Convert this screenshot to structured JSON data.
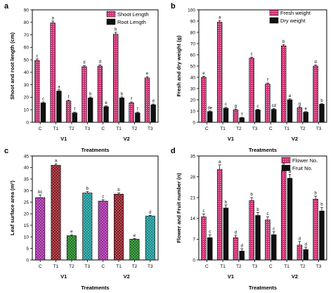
{
  "figure": {
    "panels": [
      "a",
      "b",
      "c",
      "d"
    ]
  },
  "chart_data": [
    {
      "id": "a",
      "type": "bar",
      "ylabel": "Shoot and root length (cm)",
      "xlabel": "Treatments",
      "categories": [
        "C",
        "T1",
        "T2",
        "T3",
        "C",
        "T1",
        "T2",
        "T3"
      ],
      "groups": [
        "V1",
        "V2"
      ],
      "ylim": [
        0,
        90
      ],
      "yticks": [
        0,
        10,
        20,
        30,
        40,
        50,
        60,
        70,
        80,
        90
      ],
      "legend_position": "top-right",
      "series": [
        {
          "name": "Shoot Length",
          "color": "#cc3377",
          "pattern": "dots",
          "values": [
            49.5,
            79.5,
            17,
            44.5,
            45,
            70.5,
            15.5,
            35.5
          ],
          "errors": [
            1.2,
            1.5,
            0.8,
            1,
            1,
            1.5,
            0.8,
            1
          ],
          "letters": [
            "c",
            "a",
            "f",
            "d",
            "d",
            "b",
            "f",
            "e"
          ]
        },
        {
          "name": "Root Length",
          "color": "#111111",
          "pattern": "solid",
          "values": [
            15.5,
            25,
            7.5,
            19.5,
            12.5,
            19.5,
            7.5,
            14
          ],
          "errors": [
            0.8,
            1,
            0.6,
            0.8,
            0.6,
            0.8,
            0.6,
            0.6
          ],
          "letters": [
            "c",
            "a",
            "f",
            "b",
            "e",
            "b",
            "f",
            "d"
          ]
        }
      ]
    },
    {
      "id": "b",
      "type": "bar",
      "ylabel": "Fresh and dry weight (g)",
      "xlabel": "Treatments",
      "categories": [
        "C",
        "T1",
        "T2",
        "T3",
        "C",
        "T1",
        "T2",
        "T3"
      ],
      "groups": [
        "V1",
        "V2"
      ],
      "ylim": [
        0,
        100
      ],
      "yticks": [
        0,
        10,
        20,
        30,
        40,
        50,
        60,
        70,
        80,
        90,
        100
      ],
      "legend_position": "top-right",
      "series": [
        {
          "name": "Fresh weight",
          "color": "#cc3377",
          "pattern": "dots",
          "values": [
            40,
            89,
            11,
            57,
            34,
            68,
            13,
            50
          ],
          "errors": [
            1,
            1.5,
            0.8,
            1,
            1,
            1.2,
            0.8,
            1
          ],
          "letters": [
            "e",
            "a",
            "g",
            "c",
            "f",
            "b",
            "g",
            "d"
          ]
        },
        {
          "name": "Dry weight",
          "color": "#111111",
          "pattern": "solid",
          "values": [
            9.5,
            12.5,
            4,
            11,
            11.5,
            20,
            9,
            16
          ],
          "errors": [
            0.6,
            0.8,
            0.4,
            0.6,
            0.6,
            0.8,
            0.5,
            0.6
          ],
          "letters": [
            "de",
            "c",
            "f",
            "c",
            "cd",
            "a",
            "e",
            "b"
          ]
        }
      ]
    },
    {
      "id": "c",
      "type": "bar",
      "ylabel": "Leaf surface area (m²)",
      "xlabel": "Treatments",
      "categories": [
        "C",
        "T1",
        "T2",
        "T3",
        "C",
        "T1",
        "T2",
        "T3"
      ],
      "groups": [
        "V1",
        "V2"
      ],
      "ylim": [
        0,
        45
      ],
      "yticks": [
        0,
        5,
        10,
        15,
        20,
        25,
        30,
        35,
        40,
        45
      ],
      "series": [
        {
          "name": "",
          "pattern": "crosshatch",
          "values": [
            27,
            41,
            10.5,
            29,
            25.5,
            28.5,
            9,
            19
          ],
          "errors": [
            1.2,
            0.6,
            0.4,
            0.6,
            0.6,
            0.5,
            0.3,
            0.3
          ],
          "colors": [
            "#9c2a9c",
            "#8a1820",
            "#1a7a1e",
            "#159090",
            "#9c2a9c",
            "#8a1820",
            "#1a7a1e",
            "#159090"
          ],
          "letters": [
            "bc",
            "a",
            "e",
            "b",
            "c",
            "b",
            "e",
            "d"
          ]
        }
      ]
    },
    {
      "id": "d",
      "type": "bar",
      "ylabel": "Flower and Fruit number (n)",
      "xlabel": "Treatments",
      "categories": [
        "C",
        "T1",
        "T2",
        "T3",
        "C",
        "T1",
        "T2",
        "T3"
      ],
      "groups": [
        "V1",
        "V2"
      ],
      "ylim": [
        0,
        35
      ],
      "yticks": [
        0,
        7,
        14,
        21,
        28,
        35
      ],
      "legend_position": "top-right",
      "series": [
        {
          "name": "Flower No.",
          "color": "#cc3377",
          "pattern": "dots",
          "values": [
            14.5,
            30.5,
            7.5,
            20,
            13.5,
            30,
            5,
            20.5
          ],
          "errors": [
            1,
            1.5,
            0.8,
            1,
            1,
            1.5,
            1.2,
            1
          ],
          "letters": [
            "c",
            "a",
            "d",
            "b",
            "c",
            "a",
            "d",
            "b"
          ]
        },
        {
          "name": "Fruit No.",
          "color": "#111111",
          "pattern": "solid",
          "values": [
            7.5,
            17.5,
            3,
            15,
            8.5,
            27.5,
            3.5,
            16.5
          ],
          "errors": [
            1,
            1,
            0.8,
            1,
            1,
            1.2,
            0.8,
            1.2
          ],
          "letters": [
            "c",
            "b",
            "d",
            "b",
            "c",
            "a",
            "d",
            "b"
          ]
        }
      ]
    }
  ]
}
